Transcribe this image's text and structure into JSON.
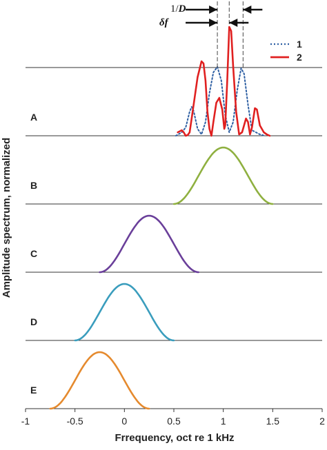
{
  "chart_data": {
    "type": "line",
    "xlabel": "Frrequency, oct re 1 kHz",
    "ylabel": "Amplitude spectrum, normalized",
    "xlim": [
      -1,
      2
    ],
    "xticks": [
      "-1",
      "-0.5",
      "0",
      "0.5",
      "1",
      "1.5",
      "2"
    ],
    "grid": false,
    "legend": {
      "position": "top-right",
      "entries": [
        {
          "label": "1",
          "color": "#2e5fa3",
          "style": "dotted"
        },
        {
          "label": "2",
          "color": "#e02020",
          "style": "solid"
        }
      ]
    },
    "annotations": {
      "inverse_duration": {
        "prefix": "1/",
        "variable": "D",
        "x_range": [
          0.94,
          1.2
        ]
      },
      "delta_f": {
        "label": "δf",
        "x_range": [
          0.94,
          1.06
        ]
      }
    },
    "panels": [
      {
        "label": "A",
        "series": [
          {
            "name": "1",
            "color": "#2e5fa3",
            "style": "dotted",
            "points": [
              [
                0.52,
                0.0
              ],
              [
                0.58,
                0.05
              ],
              [
                0.62,
                0.12
              ],
              [
                0.66,
                0.35
              ],
              [
                0.68,
                0.42
              ],
              [
                0.7,
                0.36
              ],
              [
                0.74,
                0.1
              ],
              [
                0.78,
                0.02
              ],
              [
                0.82,
                0.2
              ],
              [
                0.86,
                0.62
              ],
              [
                0.9,
                0.92
              ],
              [
                0.94,
                1.0
              ],
              [
                0.98,
                0.8
              ],
              [
                1.02,
                0.3
              ],
              [
                1.06,
                0.05
              ],
              [
                1.1,
                0.2
              ],
              [
                1.14,
                0.65
              ],
              [
                1.18,
                0.98
              ],
              [
                1.21,
                0.9
              ],
              [
                1.25,
                0.45
              ],
              [
                1.29,
                0.08
              ],
              [
                1.33,
                0.05
              ],
              [
                1.37,
                0.02
              ],
              [
                1.42,
                0.0
              ]
            ]
          },
          {
            "name": "2",
            "color": "#e02020",
            "style": "solid",
            "points": [
              [
                0.54,
                0.05
              ],
              [
                0.58,
                0.08
              ],
              [
                0.6,
                0.05
              ],
              [
                0.62,
                0.0
              ],
              [
                0.64,
                0.01
              ],
              [
                0.66,
                0.05
              ],
              [
                0.68,
                0.25
              ],
              [
                0.71,
                0.55
              ],
              [
                0.74,
                0.85
              ],
              [
                0.78,
                1.08
              ],
              [
                0.8,
                1.05
              ],
              [
                0.82,
                0.8
              ],
              [
                0.84,
                0.35
              ],
              [
                0.86,
                0.1
              ],
              [
                0.88,
                0.0
              ],
              [
                0.9,
                0.2
              ],
              [
                0.93,
                0.48
              ],
              [
                0.96,
                0.55
              ],
              [
                0.99,
                0.38
              ],
              [
                1.01,
                0.1
              ],
              [
                1.02,
                0.15
              ],
              [
                1.04,
                0.8
              ],
              [
                1.06,
                1.58
              ],
              [
                1.08,
                1.52
              ],
              [
                1.1,
                1.0
              ],
              [
                1.13,
                0.35
              ],
              [
                1.16,
                0.02
              ],
              [
                1.19,
                0.05
              ],
              [
                1.23,
                0.25
              ],
              [
                1.25,
                0.2
              ],
              [
                1.27,
                0.02
              ],
              [
                1.29,
                0.12
              ],
              [
                1.32,
                0.4
              ],
              [
                1.34,
                0.38
              ],
              [
                1.37,
                0.15
              ],
              [
                1.41,
                0.05
              ],
              [
                1.44,
                0.02
              ],
              [
                1.47,
                0.0
              ]
            ]
          }
        ]
      },
      {
        "label": "B",
        "series": [
          {
            "color": "#8fb040",
            "center": 1.0,
            "half_width": 0.5,
            "peak": 0.82
          }
        ]
      },
      {
        "label": "C",
        "series": [
          {
            "color": "#6a3f9a",
            "center": 0.25,
            "half_width": 0.5,
            "peak": 0.82
          }
        ]
      },
      {
        "label": "D",
        "series": [
          {
            "color": "#3a9dbd",
            "center": 0.0,
            "half_width": 0.5,
            "peak": 0.82
          }
        ]
      },
      {
        "label": "E",
        "series": [
          {
            "color": "#e58a2e",
            "center": -0.25,
            "half_width": 0.5,
            "peak": 0.82
          }
        ]
      }
    ]
  }
}
